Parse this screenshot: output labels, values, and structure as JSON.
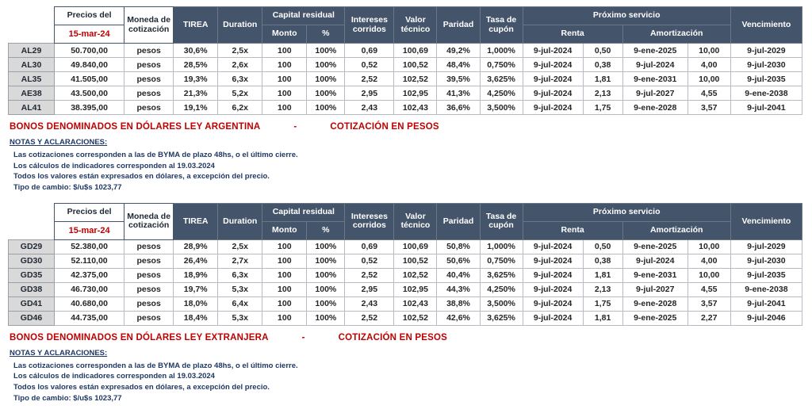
{
  "header": {
    "precios_del": "Precios del",
    "fecha": "15-mar-24",
    "moneda": "Moneda de cotización",
    "tirea": "TIREA",
    "duration": "Duration",
    "capital_residual": "Capital residual",
    "monto": "Monto",
    "pct": "%",
    "intereses": "Intereses corridos",
    "valor_tecnico": "Valor técnico",
    "paridad": "Paridad",
    "tasa_cupon": "Tasa de cupón",
    "proximo_servicio": "Próximo servicio",
    "renta": "Renta",
    "amortizacion": "Amortización",
    "vencimiento": "Vencimiento"
  },
  "sections": [
    {
      "title": "BONOS DENOMINADOS EN DÓLARES LEY ARGENTINA",
      "separator": "-",
      "subtitle": "COTIZACIÓN EN PESOS",
      "rows": [
        [
          "AL29",
          "50.700,00",
          "pesos",
          "30,6%",
          "2,5x",
          "100",
          "100%",
          "0,69",
          "100,69",
          "49,2%",
          "1,000%",
          "9-jul-2024",
          "0,50",
          "9-ene-2025",
          "10,00",
          "9-jul-2029"
        ],
        [
          "AL30",
          "49.840,00",
          "pesos",
          "28,5%",
          "2,6x",
          "100",
          "100%",
          "0,52",
          "100,52",
          "48,4%",
          "0,750%",
          "9-jul-2024",
          "0,38",
          "9-jul-2024",
          "4,00",
          "9-jul-2030"
        ],
        [
          "AL35",
          "41.505,00",
          "pesos",
          "19,3%",
          "6,3x",
          "100",
          "100%",
          "2,52",
          "102,52",
          "39,5%",
          "3,625%",
          "9-jul-2024",
          "1,81",
          "9-ene-2031",
          "10,00",
          "9-jul-2035"
        ],
        [
          "AE38",
          "43.500,00",
          "pesos",
          "21,3%",
          "5,2x",
          "100",
          "100%",
          "2,95",
          "102,95",
          "41,3%",
          "4,250%",
          "9-jul-2024",
          "2,13",
          "9-jul-2027",
          "4,55",
          "9-ene-2038"
        ],
        [
          "AL41",
          "38.395,00",
          "pesos",
          "19,1%",
          "6,2x",
          "100",
          "100%",
          "2,43",
          "102,43",
          "36,6%",
          "3,500%",
          "9-jul-2024",
          "1,75",
          "9-ene-2028",
          "3,57",
          "9-jul-2041"
        ]
      ]
    },
    {
      "title": "BONOS DENOMINADOS EN DÓLARES LEY EXTRANJERA",
      "separator": "-",
      "subtitle": "COTIZACIÓN EN PESOS",
      "rows": [
        [
          "GD29",
          "52.380,00",
          "pesos",
          "28,9%",
          "2,5x",
          "100",
          "100%",
          "0,69",
          "100,69",
          "50,8%",
          "1,000%",
          "9-jul-2024",
          "0,50",
          "9-ene-2025",
          "10,00",
          "9-jul-2029"
        ],
        [
          "GD30",
          "52.110,00",
          "pesos",
          "26,4%",
          "2,7x",
          "100",
          "100%",
          "0,52",
          "100,52",
          "50,6%",
          "0,750%",
          "9-jul-2024",
          "0,38",
          "9-jul-2024",
          "4,00",
          "9-jul-2030"
        ],
        [
          "GD35",
          "42.375,00",
          "pesos",
          "18,9%",
          "6,3x",
          "100",
          "100%",
          "2,52",
          "102,52",
          "40,4%",
          "3,625%",
          "9-jul-2024",
          "1,81",
          "9-ene-2031",
          "10,00",
          "9-jul-2035"
        ],
        [
          "GD38",
          "46.730,00",
          "pesos",
          "19,7%",
          "5,3x",
          "100",
          "100%",
          "2,95",
          "102,95",
          "44,3%",
          "4,250%",
          "9-jul-2024",
          "2,13",
          "9-jul-2027",
          "4,55",
          "9-ene-2038"
        ],
        [
          "GD41",
          "40.680,00",
          "pesos",
          "18,0%",
          "6,4x",
          "100",
          "100%",
          "2,43",
          "102,43",
          "38,8%",
          "3,500%",
          "9-jul-2024",
          "1,75",
          "9-ene-2028",
          "3,57",
          "9-jul-2041"
        ],
        [
          "GD46",
          "44.735,00",
          "pesos",
          "18,4%",
          "5,3x",
          "100",
          "100%",
          "2,52",
          "102,52",
          "42,6%",
          "3,625%",
          "9-jul-2024",
          "1,81",
          "9-ene-2025",
          "2,27",
          "9-jul-2046"
        ]
      ]
    }
  ],
  "notes": {
    "title": "NOTAS Y ACLARACIONES:",
    "lines": [
      "Las cotizaciones corresponden a las de BYMA de plazo 48hs, o el último cierre.",
      "Los cálculos de indicadores corresponden al 19.03.2024",
      "Todos los valores están expresados en dólares, a excepción del precio.",
      "Tipo de cambio:  $/u$s 1023,77"
    ]
  }
}
